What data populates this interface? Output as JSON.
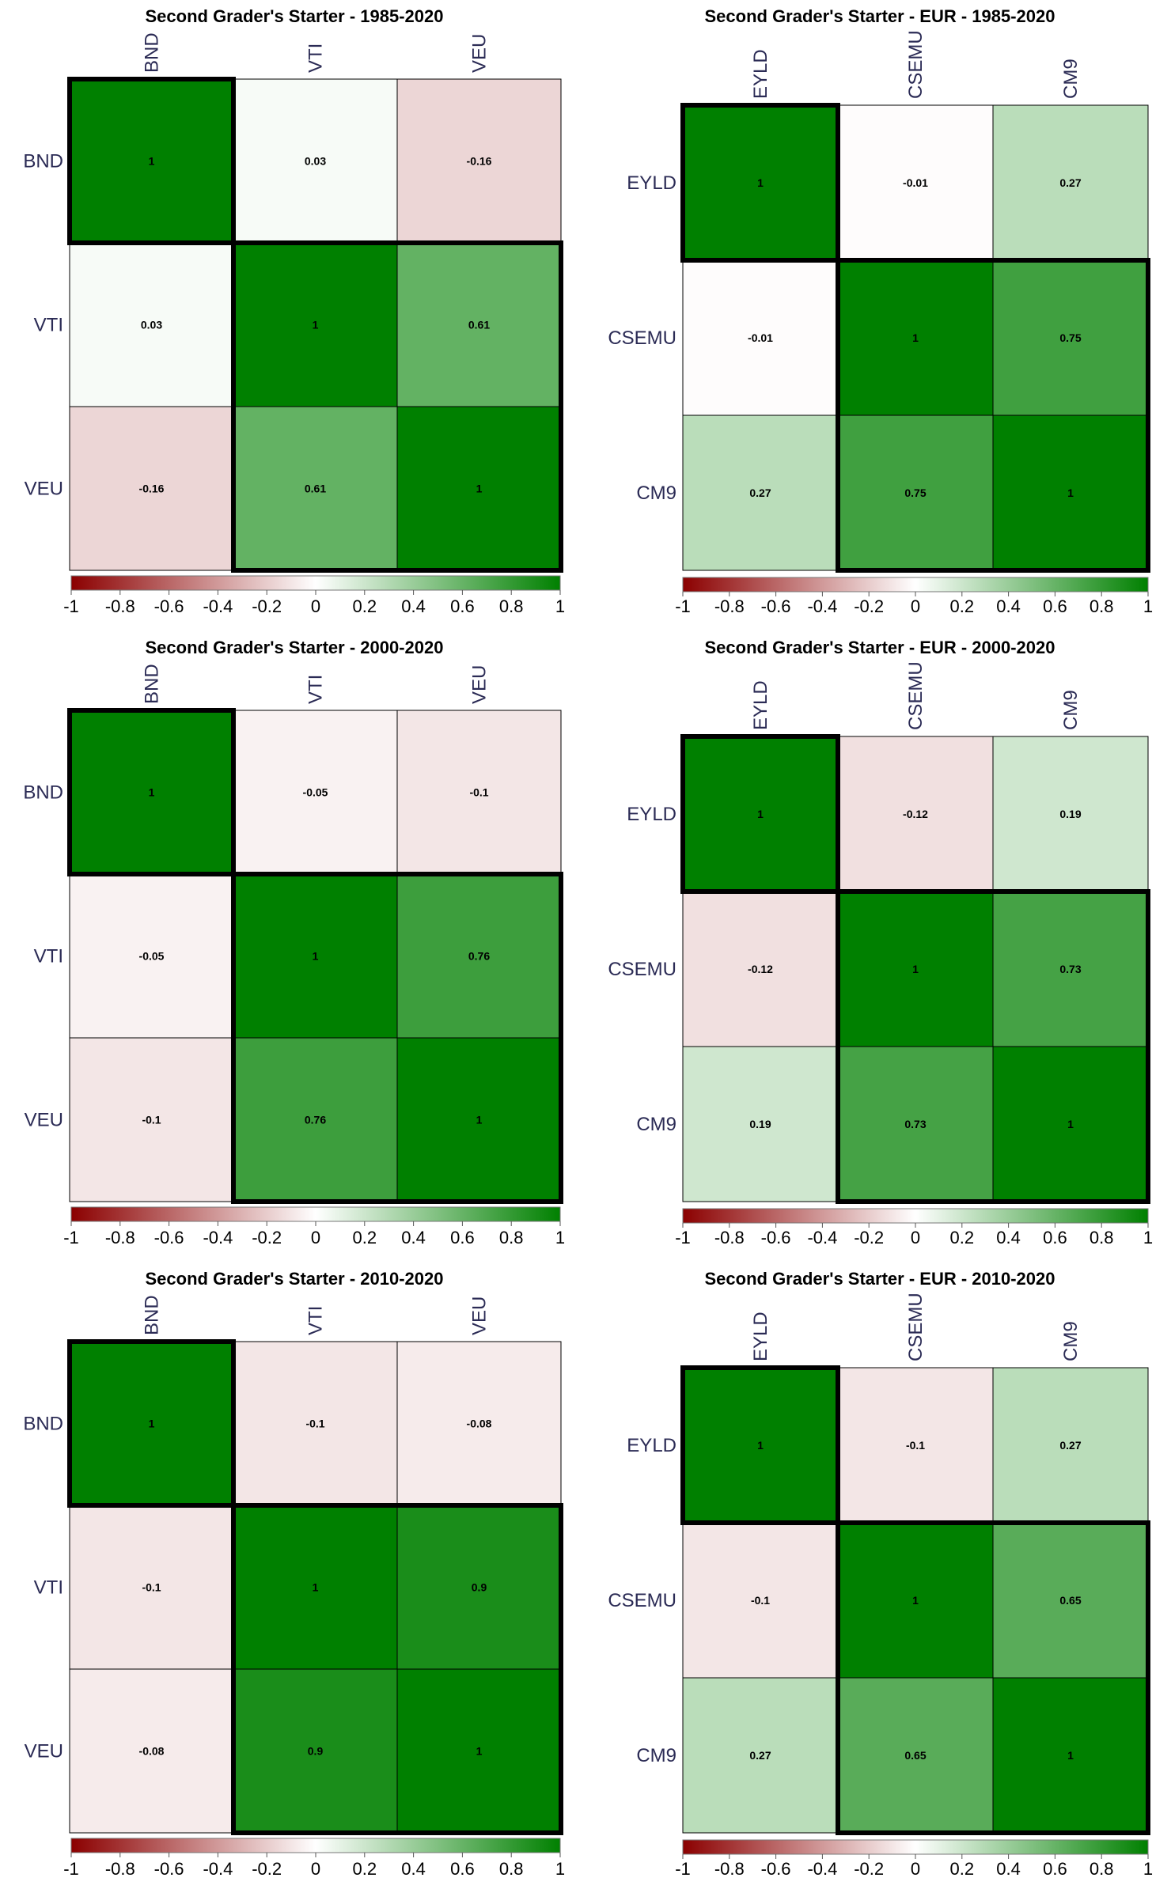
{
  "colors": {
    "negative": "#8b0000",
    "neutral": "#ffffff",
    "positive": "#008000",
    "label_text": "#2b2b55",
    "cell_text": "#000000",
    "cluster_border": "#000000"
  },
  "colorbar_ticks": [
    "-1",
    "-0.8",
    "-0.6",
    "-0.4",
    "-0.2",
    "0",
    "0.2",
    "0.4",
    "0.6",
    "0.8",
    "1"
  ],
  "chart_data": [
    {
      "type": "heatmap",
      "title": "Second Grader's Starter - 1985-2020",
      "labels": [
        "BND",
        "VTI",
        "VEU"
      ],
      "matrix": [
        [
          1,
          0.03,
          -0.16
        ],
        [
          0.03,
          1,
          0.61
        ],
        [
          -0.16,
          0.61,
          1
        ]
      ],
      "cell_text": [
        [
          "1",
          "0.03",
          "-0.16"
        ],
        [
          "0.03",
          "1",
          "0.61"
        ],
        [
          "-0.16",
          "0.61",
          "1"
        ]
      ],
      "clusters": [
        [
          0,
          0
        ],
        [
          1,
          2
        ]
      ],
      "value_range": [
        -1,
        1
      ]
    },
    {
      "type": "heatmap",
      "title": "Second Grader's Starter - EUR - 1985-2020",
      "labels": [
        "EYLD",
        "CSEMU",
        "CM9"
      ],
      "matrix": [
        [
          1,
          -0.01,
          0.27
        ],
        [
          -0.01,
          1,
          0.75
        ],
        [
          0.27,
          0.75,
          1
        ]
      ],
      "cell_text": [
        [
          "1",
          "-0.01",
          "0.27"
        ],
        [
          "-0.01",
          "1",
          "0.75"
        ],
        [
          "0.27",
          "0.75",
          "1"
        ]
      ],
      "clusters": [
        [
          0,
          0
        ],
        [
          1,
          2
        ]
      ],
      "value_range": [
        -1,
        1
      ]
    },
    {
      "type": "heatmap",
      "title": "Second Grader's Starter - 2000-2020",
      "labels": [
        "BND",
        "VTI",
        "VEU"
      ],
      "matrix": [
        [
          1,
          -0.05,
          -0.1
        ],
        [
          -0.05,
          1,
          0.76
        ],
        [
          -0.1,
          0.76,
          1
        ]
      ],
      "cell_text": [
        [
          "1",
          "-0.05",
          "-0.1"
        ],
        [
          "-0.05",
          "1",
          "0.76"
        ],
        [
          "-0.1",
          "0.76",
          "1"
        ]
      ],
      "clusters": [
        [
          0,
          0
        ],
        [
          1,
          2
        ]
      ],
      "value_range": [
        -1,
        1
      ]
    },
    {
      "type": "heatmap",
      "title": "Second Grader's Starter - EUR - 2000-2020",
      "labels": [
        "EYLD",
        "CSEMU",
        "CM9"
      ],
      "matrix": [
        [
          1,
          -0.12,
          0.19
        ],
        [
          -0.12,
          1,
          0.73
        ],
        [
          0.19,
          0.73,
          1
        ]
      ],
      "cell_text": [
        [
          "1",
          "-0.12",
          "0.19"
        ],
        [
          "-0.12",
          "1",
          "0.73"
        ],
        [
          "0.19",
          "0.73",
          "1"
        ]
      ],
      "clusters": [
        [
          0,
          0
        ],
        [
          1,
          2
        ]
      ],
      "value_range": [
        -1,
        1
      ]
    },
    {
      "type": "heatmap",
      "title": "Second Grader's Starter - 2010-2020",
      "labels": [
        "BND",
        "VTI",
        "VEU"
      ],
      "matrix": [
        [
          1,
          -0.1,
          -0.08
        ],
        [
          -0.1,
          1,
          0.9
        ],
        [
          -0.08,
          0.9,
          1
        ]
      ],
      "cell_text": [
        [
          "1",
          "-0.1",
          "-0.08"
        ],
        [
          "-0.1",
          "1",
          "0.9"
        ],
        [
          "-0.08",
          "0.9",
          "1"
        ]
      ],
      "clusters": [
        [
          0,
          0
        ],
        [
          1,
          2
        ]
      ],
      "value_range": [
        -1,
        1
      ]
    },
    {
      "type": "heatmap",
      "title": "Second Grader's Starter - EUR - 2010-2020",
      "labels": [
        "EYLD",
        "CSEMU",
        "CM9"
      ],
      "matrix": [
        [
          1,
          -0.1,
          0.27
        ],
        [
          -0.1,
          1,
          0.65
        ],
        [
          0.27,
          0.65,
          1
        ]
      ],
      "cell_text": [
        [
          "1",
          "-0.1",
          "0.27"
        ],
        [
          "-0.1",
          "1",
          "0.65"
        ],
        [
          "0.27",
          "0.65",
          "1"
        ]
      ],
      "clusters": [
        [
          0,
          0
        ],
        [
          1,
          2
        ]
      ],
      "value_range": [
        -1,
        1
      ]
    }
  ]
}
